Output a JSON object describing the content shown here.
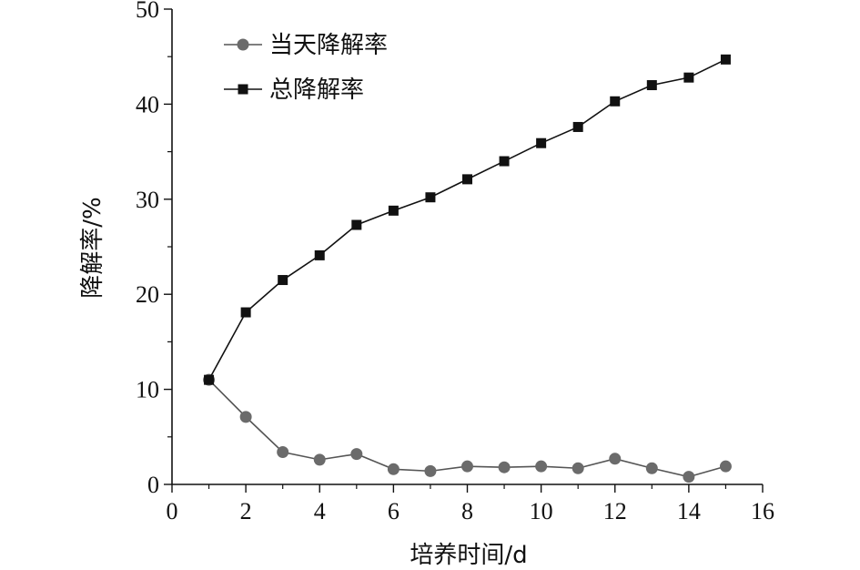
{
  "chart_data": {
    "type": "line",
    "xlabel": "培养时间/d",
    "ylabel": "降解率/%",
    "xlim": [
      0,
      16
    ],
    "ylim": [
      0,
      50
    ],
    "x_ticks": [
      0,
      2,
      4,
      6,
      8,
      10,
      12,
      14,
      16
    ],
    "y_ticks": [
      0,
      10,
      20,
      30,
      40,
      50
    ],
    "grid": false,
    "legend_position": "top-left",
    "x": [
      1,
      2,
      3,
      4,
      5,
      6,
      7,
      8,
      9,
      10,
      11,
      12,
      13,
      14,
      15
    ],
    "series": [
      {
        "name": "当天降解率",
        "marker": "circle",
        "color": "#6b6b6b",
        "line_color": "#555555",
        "values": [
          11.0,
          7.1,
          3.4,
          2.6,
          3.2,
          1.6,
          1.4,
          1.9,
          1.8,
          1.9,
          1.7,
          2.7,
          1.7,
          0.8,
          1.9
        ]
      },
      {
        "name": "总降解率",
        "marker": "square",
        "color": "#111111",
        "line_color": "#111111",
        "values": [
          11.0,
          18.1,
          21.5,
          24.1,
          27.3,
          28.8,
          30.2,
          32.1,
          34.0,
          35.9,
          37.6,
          40.3,
          42.0,
          42.8,
          44.7
        ]
      }
    ]
  }
}
